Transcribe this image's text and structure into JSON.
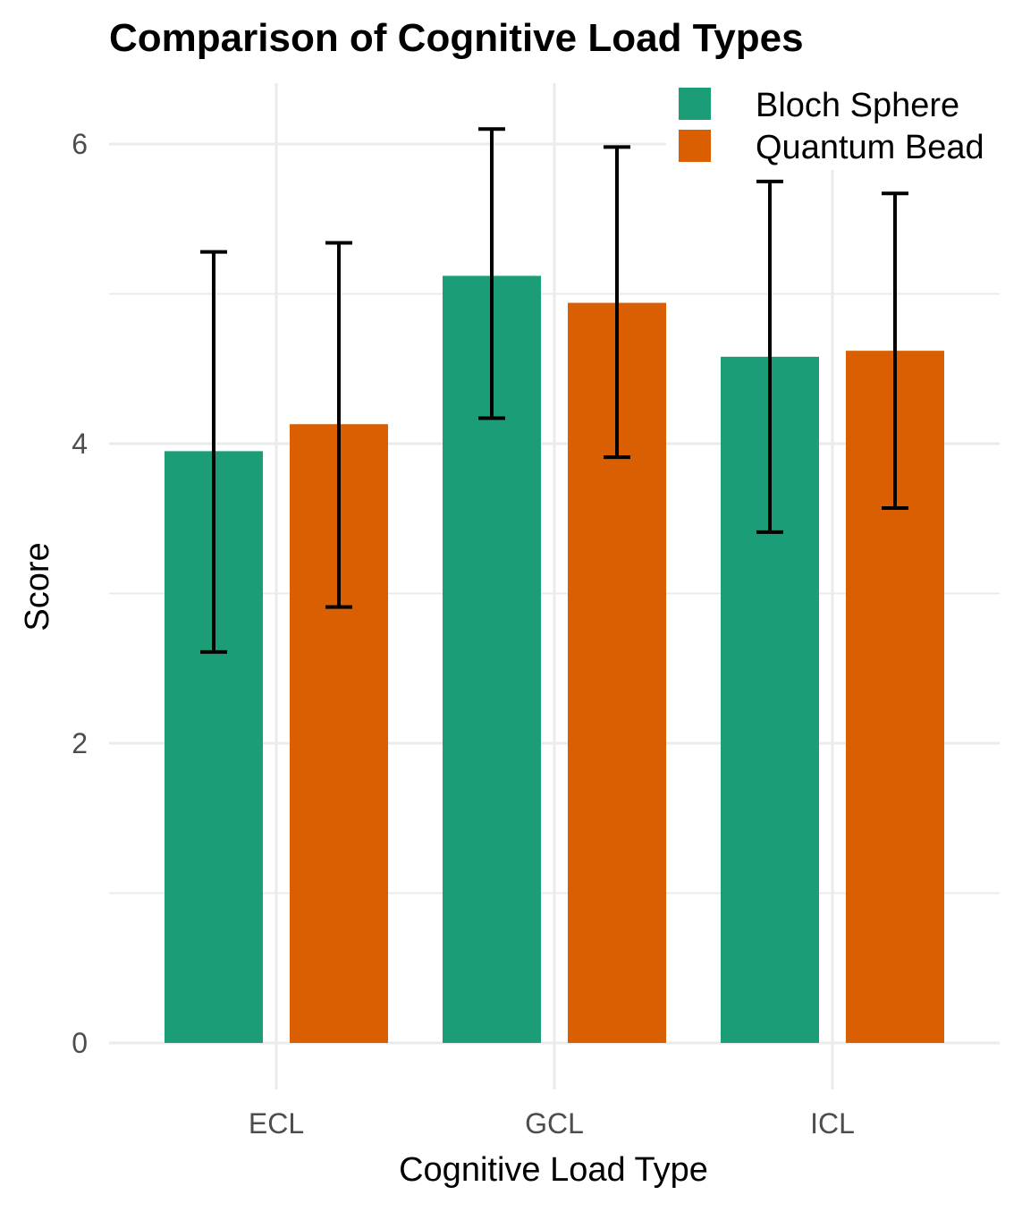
{
  "chart_data": {
    "type": "bar",
    "title": "Comparison of Cognitive Load Types",
    "xlabel": "Cognitive Load Type",
    "ylabel": "Score",
    "categories": [
      "ECL",
      "GCL",
      "ICL"
    ],
    "ylim": [
      -0.25,
      6.4
    ],
    "yticks": [
      0,
      2,
      4,
      6
    ],
    "grid": true,
    "legend_position": "top-right",
    "series": [
      {
        "name": "Bloch Sphere",
        "color": "#1B9E77",
        "values": [
          3.95,
          5.12,
          4.58
        ],
        "error_low": [
          2.61,
          4.17,
          3.41
        ],
        "error_high": [
          5.28,
          6.1,
          5.75
        ]
      },
      {
        "name": "Quantum Bead",
        "color": "#D95F02",
        "values": [
          4.13,
          4.94,
          4.62
        ],
        "error_low": [
          2.91,
          3.91,
          3.57
        ],
        "error_high": [
          5.34,
          5.98,
          5.67
        ]
      }
    ]
  }
}
